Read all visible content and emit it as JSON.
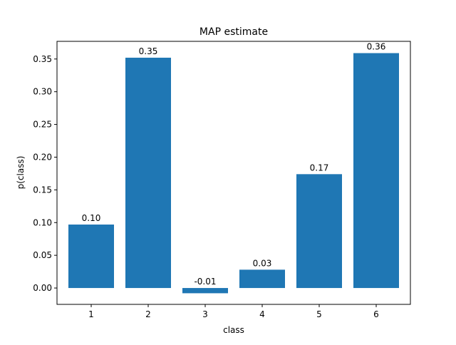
{
  "chart_data": {
    "type": "bar",
    "title": "MAP estimate",
    "xlabel": "class",
    "ylabel": "p(class)",
    "categories": [
      "1",
      "2",
      "3",
      "4",
      "5",
      "6"
    ],
    "values": [
      0.097,
      0.352,
      -0.008,
      0.028,
      0.174,
      0.359
    ],
    "data_labels": [
      "0.10",
      "0.35",
      "-0.01",
      "0.03",
      "0.17",
      "0.36"
    ],
    "ylim": [
      -0.025,
      0.377
    ],
    "yticks": [
      0.0,
      0.05,
      0.1,
      0.15,
      0.2,
      0.25,
      0.3,
      0.35
    ],
    "ytick_labels": [
      "0.00",
      "0.05",
      "0.10",
      "0.15",
      "0.20",
      "0.25",
      "0.30",
      "0.35"
    ],
    "grid": false,
    "legend": "none",
    "colors": {
      "bar": "#1f77b4",
      "axis": "#000000",
      "background": "#ffffff"
    }
  }
}
